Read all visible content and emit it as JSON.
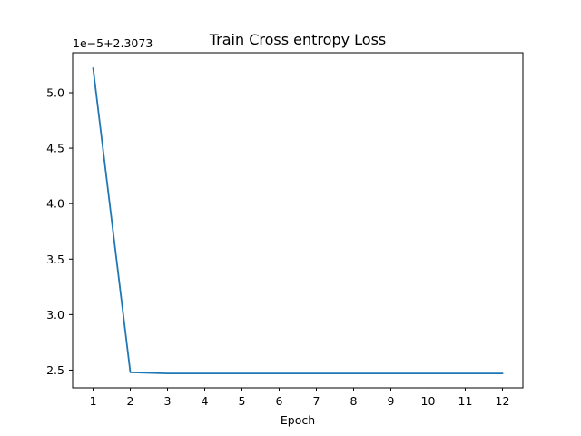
{
  "chart_data": {
    "type": "line",
    "title": "Train Cross entropy Loss",
    "xlabel": "Epoch",
    "ylabel": "",
    "y_offset_text": "1e−5+2.3073",
    "xlim": [
      0.45,
      12.55
    ],
    "ylim": [
      2.34,
      5.36
    ],
    "xticks": [
      1,
      2,
      3,
      4,
      5,
      6,
      7,
      8,
      9,
      10,
      11,
      12
    ],
    "xtick_labels": [
      "1",
      "2",
      "3",
      "4",
      "5",
      "6",
      "7",
      "8",
      "9",
      "10",
      "11",
      "12"
    ],
    "yticks": [
      2.5,
      3.0,
      3.5,
      4.0,
      4.5,
      5.0
    ],
    "ytick_labels": [
      "2.5",
      "3.0",
      "3.5",
      "4.0",
      "4.5",
      "5.0"
    ],
    "series": [
      {
        "color": "#1f77b4",
        "x": [
          1,
          2,
          3,
          4,
          5,
          6,
          7,
          8,
          9,
          10,
          11,
          12
        ],
        "y": [
          5.22,
          2.48,
          2.47,
          2.47,
          2.47,
          2.47,
          2.47,
          2.47,
          2.47,
          2.47,
          2.47,
          2.47
        ]
      }
    ],
    "grid": false,
    "legend": "none"
  }
}
